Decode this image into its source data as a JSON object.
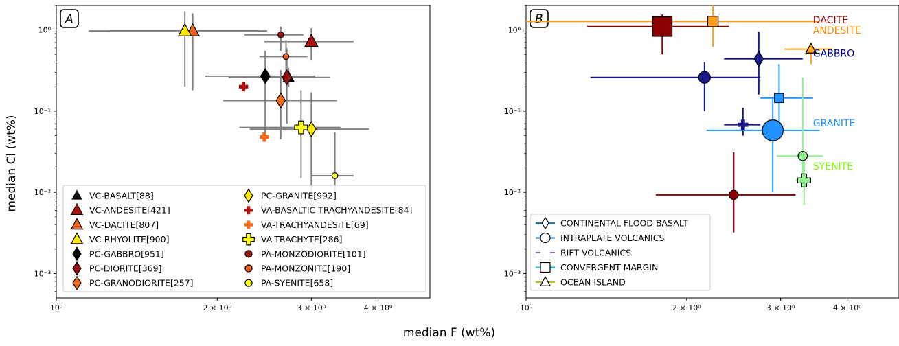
{
  "figure": {
    "xlabel": "median F (wt%)",
    "ylabel": "median Cl (wt%)"
  },
  "chart_data": [
    {
      "type": "scatter",
      "panel_label": "A",
      "xscale": "log",
      "yscale": "log",
      "xlim": [
        1.0,
        5.0
      ],
      "ylim": [
        0.0005,
        2.0
      ],
      "xticks": [
        {
          "v": 1,
          "label": "10⁰"
        },
        {
          "v": 2,
          "label": "2 × 10⁰"
        },
        {
          "v": 3,
          "label": "3 × 10⁰"
        },
        {
          "v": 4,
          "label": "4 × 10⁰"
        }
      ],
      "yticks": [
        {
          "v": 0.001,
          "label": "10⁻³"
        },
        {
          "v": 0.01,
          "label": "10⁻²"
        },
        {
          "v": 0.1,
          "label": "10⁻¹"
        },
        {
          "v": 1,
          "label": "10⁰"
        }
      ],
      "legend_placement": "lower-right",
      "legend_columns": 2,
      "errorbar_color": "#808080",
      "series": [
        {
          "name": "VC-BASALT[88]",
          "marker": "triangle",
          "color": "#111111",
          "size": 9,
          "points": [
            {
              "x": 2.72,
              "y": 0.26,
              "xerr": [
                2.4,
                3.05
              ],
              "yerr": [
                0.2,
                0.34
              ]
            }
          ]
        },
        {
          "name": "VC-ANDESITE[421]",
          "marker": "triangle",
          "color": "#b01212",
          "size": 11,
          "points": [
            {
              "x": 3.0,
              "y": 0.72,
              "xerr": [
                2.45,
                3.6
              ],
              "yerr": [
                0.42,
                1.05
              ]
            }
          ]
        },
        {
          "name": "VC-DACITE[807]",
          "marker": "triangle",
          "color": "#f06020",
          "size": 11,
          "points": [
            {
              "x": 1.8,
              "y": 0.97,
              "xerr": [
                1.25,
                2.48
              ],
              "yerr": [
                0.18,
                1.6
              ]
            }
          ]
        },
        {
          "name": "VC-RHYOLITE[900]",
          "marker": "triangle",
          "color": "#ffea00",
          "size": 11,
          "points": [
            {
              "x": 1.74,
              "y": 0.97,
              "xerr": [
                1.15,
                2.4
              ],
              "yerr": [
                0.2,
                1.7
              ]
            }
          ]
        },
        {
          "name": "PC-GABBRO[951]",
          "marker": "diamond",
          "color": "#000000",
          "size": 11,
          "points": [
            {
              "x": 2.46,
              "y": 0.27,
              "xerr": [
                1.9,
                3.05
              ],
              "yerr": [
                0.05,
                0.55
              ]
            }
          ]
        },
        {
          "name": "PC-DIORITE[369]",
          "marker": "diamond",
          "color": "#9a0f0f",
          "size": 11,
          "points": [
            {
              "x": 2.7,
              "y": 0.26,
              "xerr": [
                2.1,
                3.25
              ],
              "yerr": [
                0.07,
                0.6
              ]
            }
          ]
        },
        {
          "name": "PC-GRANODIORITE[257]",
          "marker": "diamond",
          "color": "#f26a1a",
          "size": 11,
          "points": [
            {
              "x": 2.63,
              "y": 0.135,
              "xerr": [
                2.05,
                3.35
              ],
              "yerr": [
                0.045,
                0.32
              ]
            }
          ]
        },
        {
          "name": "PC-GRANITE[992]",
          "marker": "diamond",
          "color": "#ffea00",
          "size": 11,
          "points": [
            {
              "x": 3.0,
              "y": 0.06,
              "xerr": [
                2.3,
                3.85
              ],
              "yerr": [
                0.007,
                0.17
              ]
            }
          ]
        },
        {
          "name": "VA-BASALTIC TRACHYANDESITE[84]",
          "marker": "plus",
          "color": "#b01212",
          "size": 8,
          "points": [
            {
              "x": 2.24,
              "y": 0.2,
              "xerr": [
                2.2,
                2.28
              ],
              "yerr": [
                0.18,
                0.23
              ]
            }
          ]
        },
        {
          "name": "VA-TRACHYANDESITE[69]",
          "marker": "plus",
          "color": "#ff6a1a",
          "size": 8,
          "points": [
            {
              "x": 2.45,
              "y": 0.048,
              "xerr": [
                2.4,
                2.5
              ],
              "yerr": [
                0.042,
                0.055
              ]
            }
          ]
        },
        {
          "name": "VA-TRACHYTE[286]",
          "marker": "plus",
          "color": "#ffff20",
          "size": 11,
          "points": [
            {
              "x": 2.87,
              "y": 0.063,
              "xerr": [
                2.2,
                3.4
              ],
              "yerr": [
                0.015,
                0.18
              ]
            }
          ]
        },
        {
          "name": "PA-MONZODIORITE[101]",
          "marker": "circle",
          "color": "#9a0f0f",
          "size": 5,
          "points": [
            {
              "x": 2.63,
              "y": 0.87,
              "xerr": [
                2.25,
                2.9
              ],
              "yerr": [
                0.55,
                1.1
              ]
            }
          ]
        },
        {
          "name": "PA-MONZONITE[190]",
          "marker": "circle",
          "color": "#f06020",
          "size": 5,
          "points": [
            {
              "x": 2.69,
              "y": 0.47,
              "xerr": [
                2.4,
                2.95
              ],
              "yerr": [
                0.3,
                0.75
              ]
            }
          ]
        },
        {
          "name": "PA-SYENITE[658]",
          "marker": "circle",
          "color": "#ffff30",
          "size": 5,
          "points": [
            {
              "x": 3.32,
              "y": 0.016,
              "xerr": [
                3.0,
                3.6
              ],
              "yerr": [
                0.005,
                0.055
              ]
            }
          ]
        }
      ]
    },
    {
      "type": "scatter",
      "panel_label": "B",
      "xscale": "log",
      "yscale": "log",
      "xlim": [
        1.0,
        5.0
      ],
      "ylim": [
        0.0005,
        2.0
      ],
      "xticks": [
        {
          "v": 1,
          "label": "10⁰"
        },
        {
          "v": 2,
          "label": "2 × 10⁰"
        },
        {
          "v": 3,
          "label": "3 × 10⁰"
        },
        {
          "v": 4,
          "label": "4 × 10⁰"
        }
      ],
      "yticks": [
        {
          "v": 0.001,
          "label": "10⁻³"
        },
        {
          "v": 0.01,
          "label": "10⁻²"
        },
        {
          "v": 0.1,
          "label": "10⁻¹"
        },
        {
          "v": 1,
          "label": "10⁰"
        }
      ],
      "legend_placement": "lower-left",
      "legend_entries": [
        {
          "label": "CONTINENTAL FLOOD BASALT",
          "marker": "diamond",
          "color": "#1f77b4"
        },
        {
          "label": "INTRAPLATE VOLCANICS",
          "marker": "circle",
          "color": "#1f77b4"
        },
        {
          "label": "RIFT VOLCANICS",
          "marker": "plus",
          "color": "#9467bd"
        },
        {
          "label": "CONVERGENT MARGIN",
          "marker": "square",
          "color": "#17becf"
        },
        {
          "label": "OCEAN ISLAND",
          "marker": "triangle",
          "color": "#bcbd22"
        }
      ],
      "annotations": [
        {
          "text": "DACITE",
          "color": "#8b0000",
          "x": 3.45,
          "y": 1.2
        },
        {
          "text": "ANDESITE",
          "color": "#ff8c00",
          "x": 3.45,
          "y": 0.9
        },
        {
          "text": "GABBRO",
          "color": "#00008b",
          "x": 3.45,
          "y": 0.47
        },
        {
          "text": "GRANITE",
          "color": "#1e90ff",
          "x": 3.45,
          "y": 0.065
        },
        {
          "text": "SYENITE",
          "color": "#7cfc00",
          "x": 3.45,
          "y": 0.019
        }
      ],
      "points": [
        {
          "group": "DACITE",
          "marker": "square",
          "color": "#8b0000",
          "size": 15,
          "x": 1.8,
          "y": 1.1,
          "xerr": [
            1.3,
            2.4
          ],
          "yerr": [
            0.5,
            1.55
          ]
        },
        {
          "group": "ANDESITE",
          "marker": "square",
          "color": "#ff9f1a",
          "size": 8,
          "x": 2.24,
          "y": 1.27,
          "xerr": [
            1.0,
            3.55
          ],
          "yerr": [
            0.62,
            2.0
          ]
        },
        {
          "group": "ANDESITE",
          "marker": "triangle",
          "color": "#ff9f1a",
          "size": 8,
          "x": 3.42,
          "y": 0.58,
          "xerr": [
            3.05,
            3.75
          ],
          "yerr": [
            0.38,
            0.7
          ]
        },
        {
          "group": "GABBRO",
          "marker": "diamond",
          "color": "#1a1a8c",
          "size": 10,
          "x": 2.73,
          "y": 0.44,
          "xerr": [
            2.35,
            3.3
          ],
          "yerr": [
            0.16,
            0.95
          ]
        },
        {
          "group": "GABBRO",
          "marker": "circle",
          "color": "#1a1a8c",
          "size": 9,
          "x": 2.16,
          "y": 0.26,
          "xerr": [
            1.32,
            2.75
          ],
          "yerr": [
            0.1,
            0.4
          ]
        },
        {
          "group": "GABBRO",
          "marker": "plus",
          "color": "#1a1a8c",
          "size": 8,
          "x": 2.55,
          "y": 0.068,
          "xerr": [
            2.35,
            2.75
          ],
          "yerr": [
            0.05,
            0.11
          ]
        },
        {
          "group": "GRANITE",
          "marker": "square",
          "color": "#1e90ff",
          "size": 7,
          "x": 2.98,
          "y": 0.145,
          "xerr": [
            2.75,
            3.45
          ],
          "yerr": [
            0.06,
            0.38
          ]
        },
        {
          "group": "GRANITE",
          "marker": "circle",
          "color": "#1e90ff",
          "size": 16,
          "x": 2.9,
          "y": 0.058,
          "xerr": [
            2.18,
            3.55
          ],
          "yerr": [
            0.01,
            0.15
          ]
        },
        {
          "group": "SYENITE",
          "marker": "circle",
          "color": "#90ee90",
          "size": 7,
          "x": 3.3,
          "y": 0.028,
          "xerr": [
            2.95,
            3.6
          ],
          "yerr": [
            0.014,
            0.26
          ]
        },
        {
          "group": "SYENITE",
          "marker": "plus",
          "color": "#90ee90",
          "size": 10,
          "x": 3.32,
          "y": 0.014,
          "xerr": [
            3.2,
            3.42
          ],
          "yerr": [
            0.007,
            0.03
          ]
        },
        {
          "group": "DACITE",
          "marker": "circle",
          "color": "#8b0000",
          "size": 7,
          "x": 2.45,
          "y": 0.0093,
          "xerr": [
            1.75,
            3.2
          ],
          "yerr": [
            0.0032,
            0.031
          ]
        }
      ]
    }
  ]
}
